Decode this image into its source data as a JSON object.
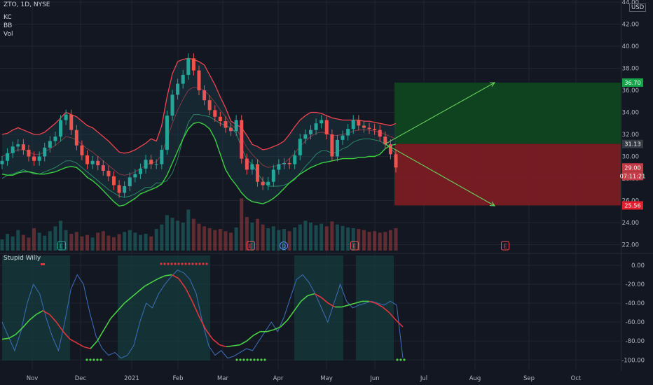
{
  "header": {
    "symbol": "ZTO, 1D, NYSE",
    "indicators": [
      "KC",
      "BB",
      "Vol"
    ],
    "currency": "USD"
  },
  "subpane": {
    "title": "Stupid Willy"
  },
  "colors": {
    "bg": "#131722",
    "grid": "#1f2430",
    "text": "#b2b5be",
    "up": "#26a69a",
    "down": "#ef5350",
    "band_upper": "#f0434e",
    "band_lower": "#3bd040",
    "channel_fill": "#1c3b48",
    "target_zone": "#0f4520",
    "stop_zone": "#7a1c24",
    "arrow": "#66d35e",
    "willy_line": "#3a6ab0",
    "ma_green": "#4ad144",
    "ma_red": "#e3343d",
    "zone_highlight": "#163c3c"
  },
  "chart_data": [
    {
      "type": "line",
      "title": "",
      "x_ticks": [
        "Nov",
        "Dec",
        "2021",
        "Feb",
        "Mar",
        "Apr",
        "May",
        "Jun",
        "Jul",
        "Aug",
        "Sep",
        "Oct"
      ],
      "y_ticks": [
        "22.00",
        "24.00",
        "26.00",
        "28.00",
        "30.00",
        "32.00",
        "34.00",
        "36.00",
        "38.00",
        "40.00",
        "42.00",
        "44.00"
      ],
      "ylim": [
        21.5,
        44.0
      ],
      "price_labels": [
        {
          "value": 36.7,
          "label": "36.70",
          "kind": "target"
        },
        {
          "value": 31.13,
          "label": "31.13",
          "kind": "entry"
        },
        {
          "value": 29.0,
          "label": "29.00",
          "kind": "last"
        },
        {
          "value": 28.8,
          "label": "07:11:21",
          "kind": "countdown"
        },
        {
          "value": 25.56,
          "label": "25.56",
          "kind": "stop"
        }
      ],
      "series": [
        {
          "name": "",
          "key": "close",
          "values": [
            29.6,
            30.3,
            30.9,
            31.1,
            30.6,
            30.0,
            29.6,
            30.0,
            30.8,
            31.4,
            31.8,
            33.3,
            33.8,
            32.4,
            31.0,
            30.1,
            29.3,
            29.6,
            29.2,
            28.7,
            28.2,
            27.4,
            26.7,
            27.3,
            28.1,
            28.4,
            28.9,
            29.7,
            29.3,
            29.3,
            30.6,
            33.7,
            35.6,
            36.6,
            37.4,
            38.9,
            37.8,
            36.0,
            35.1,
            34.2,
            33.6,
            33.2,
            32.6,
            32.3,
            33.3,
            29.8,
            28.8,
            29.3,
            27.7,
            27.4,
            27.7,
            28.8,
            29.3,
            29.4,
            29.3,
            30.1,
            31.6,
            32.0,
            32.4,
            33.0,
            33.3,
            32.0,
            30.0,
            31.5,
            31.9,
            32.5,
            33.3,
            32.8,
            32.6,
            32.5,
            32.4,
            31.8,
            31.1,
            30.2,
            29.0
          ]
        },
        {
          "name": "",
          "key": "bb_upper",
          "values": [
            32.0,
            32.1,
            32.4,
            32.6,
            32.4,
            32.2,
            32.0,
            32.0,
            32.2,
            32.6,
            33.0,
            33.5,
            34.0,
            33.8,
            33.6,
            33.2,
            32.8,
            32.6,
            32.2,
            31.8,
            31.4,
            30.9,
            30.4,
            30.3,
            30.4,
            30.6,
            30.9,
            31.2,
            31.6,
            31.4,
            32.8,
            35.4,
            37.5,
            38.6,
            38.8,
            38.9,
            38.8,
            38.6,
            38.3,
            37.4,
            36.5,
            35.4,
            34.4,
            33.2,
            32.9,
            32.6,
            31.9,
            31.1,
            30.9,
            30.6,
            30.7,
            30.9,
            31.1,
            31.4,
            32.0,
            32.7,
            33.3,
            33.7,
            34.0,
            34.0,
            33.9,
            33.7,
            33.5,
            33.4,
            33.3,
            33.3,
            33.3,
            33.3,
            33.2,
            33.2,
            33.1,
            33.0,
            32.9,
            32.8,
            33.0
          ]
        },
        {
          "name": "",
          "key": "bb_basis",
          "values": [
            30.0,
            30.2,
            30.4,
            30.6,
            30.6,
            30.4,
            30.2,
            30.2,
            30.4,
            30.7,
            31.0,
            31.4,
            31.8,
            31.7,
            31.5,
            31.1,
            30.7,
            30.4,
            30.0,
            29.6,
            29.2,
            28.8,
            28.4,
            28.3,
            28.4,
            28.6,
            28.9,
            29.2,
            29.4,
            29.5,
            30.2,
            31.6,
            33.0,
            34.2,
            35.2,
            36.0,
            36.3,
            36.2,
            36.0,
            35.5,
            34.9,
            34.2,
            33.6,
            32.9,
            32.5,
            31.7,
            30.8,
            30.2,
            29.7,
            29.2,
            29.0,
            29.1,
            29.2,
            29.4,
            29.8,
            30.3,
            30.9,
            31.4,
            31.8,
            32.1,
            32.2,
            32.1,
            31.9,
            31.9,
            32.0,
            32.1,
            32.3,
            32.4,
            32.4,
            32.4,
            32.3,
            32.2,
            32.0,
            31.8,
            31.6
          ]
        },
        {
          "name": "",
          "key": "kc_lower",
          "values": [
            28.4,
            28.3,
            28.3,
            28.5,
            28.6,
            28.6,
            28.5,
            28.4,
            28.4,
            28.5,
            28.6,
            28.8,
            29.0,
            29.1,
            29.0,
            28.6,
            28.1,
            27.8,
            27.4,
            26.9,
            26.4,
            25.9,
            25.5,
            25.6,
            25.9,
            26.2,
            26.6,
            26.8,
            27.0,
            27.2,
            27.5,
            28.3,
            29.4,
            30.5,
            31.6,
            32.5,
            33.0,
            33.1,
            32.9,
            32.5,
            31.6,
            30.2,
            28.8,
            28.0,
            27.4,
            26.7,
            26.2,
            25.9,
            25.8,
            25.7,
            25.9,
            26.2,
            26.6,
            27.1,
            27.6,
            28.0,
            28.4,
            28.7,
            29.0,
            29.2,
            29.4,
            29.5,
            29.6,
            29.7,
            29.8,
            29.8,
            29.8,
            29.9,
            29.9,
            30.0,
            30.0,
            30.2,
            30.7,
            31.0,
            31.1
          ]
        },
        {
          "name": "",
          "key": "bb_lower",
          "values": [
            28.0,
            28.3,
            28.4,
            28.6,
            28.8,
            28.6,
            28.4,
            28.4,
            28.6,
            28.8,
            29.0,
            29.3,
            29.6,
            29.6,
            29.4,
            29.0,
            28.6,
            28.2,
            27.8,
            27.4,
            27.0,
            26.7,
            26.4,
            26.3,
            26.4,
            26.6,
            26.9,
            27.2,
            27.2,
            27.6,
            27.6,
            27.8,
            28.5,
            29.8,
            31.6,
            33.1,
            33.8,
            33.8,
            33.7,
            33.6,
            33.3,
            33.0,
            32.8,
            32.6,
            32.1,
            30.8,
            29.7,
            29.3,
            28.5,
            27.8,
            27.3,
            27.3,
            27.3,
            27.4,
            27.6,
            27.9,
            28.5,
            29.1,
            29.6,
            30.2,
            30.5,
            30.5,
            30.3,
            30.4,
            30.7,
            30.9,
            31.3,
            31.5,
            31.6,
            31.6,
            31.5,
            31.4,
            31.1,
            30.8,
            30.2
          ]
        }
      ],
      "volume": [
        30,
        45,
        38,
        55,
        42,
        35,
        60,
        48,
        40,
        52,
        65,
        80,
        55,
        45,
        50,
        38,
        42,
        35,
        48,
        52,
        40,
        36,
        44,
        50,
        55,
        48,
        42,
        45,
        38,
        58,
        70,
        95,
        88,
        80,
        75,
        110,
        85,
        72,
        65,
        60,
        55,
        58,
        52,
        48,
        62,
        140,
        90,
        75,
        85,
        70,
        60,
        65,
        55,
        58,
        52,
        62,
        70,
        80,
        75,
        68,
        72,
        65,
        78,
        70,
        66,
        62,
        60,
        58,
        55,
        50,
        52,
        48,
        50,
        55,
        60
      ],
      "markers": [
        {
          "label": "E",
          "kind": "earnings"
        },
        {
          "label": "E",
          "kind": "earnings"
        },
        {
          "label": "D",
          "kind": "dividend"
        },
        {
          "label": "E",
          "kind": "earnings"
        },
        {
          "label": "E",
          "kind": "earnings"
        }
      ],
      "projection": {
        "entry": 31.13,
        "target": 36.7,
        "stop": 25.56
      }
    },
    {
      "type": "line",
      "title": "Stupid Willy",
      "y_ticks": [
        "0.00",
        "-20.00",
        "-40.00",
        "-60.00",
        "-80.00",
        "-100.00"
      ],
      "ylim": [
        -105,
        5
      ],
      "series": [
        {
          "name": "",
          "key": "willy",
          "values": [
            -60,
            -75,
            -90,
            -70,
            -40,
            -20,
            -30,
            -55,
            -75,
            -90,
            -60,
            -25,
            -10,
            -20,
            -50,
            -75,
            -88,
            -95,
            -92,
            -98,
            -95,
            -85,
            -60,
            -40,
            -45,
            -30,
            -20,
            -12,
            -5,
            -8,
            -15,
            -30,
            -60,
            -85,
            -95,
            -90,
            -98,
            -96,
            -92,
            -88,
            -90,
            -80,
            -70,
            -60,
            -70,
            -55,
            -35,
            -15,
            -10,
            -18,
            -30,
            -45,
            -60,
            -40,
            -20,
            -38,
            -45,
            -42,
            -40,
            -38,
            -40,
            -42,
            -38,
            -42,
            -98
          ]
        },
        {
          "name": "",
          "key": "ma",
          "values": [
            -78,
            -77,
            -73,
            -66,
            -58,
            -52,
            -48,
            -52,
            -60,
            -70,
            -78,
            -82,
            -86,
            -88,
            -80,
            -68,
            -56,
            -48,
            -40,
            -34,
            -28,
            -22,
            -18,
            -14,
            -11,
            -10,
            -14,
            -24,
            -38,
            -54,
            -68,
            -78,
            -84,
            -86,
            -85,
            -84,
            -80,
            -74,
            -70,
            -70,
            -68,
            -65,
            -58,
            -48,
            -38,
            -32,
            -30,
            -34,
            -40,
            -44,
            -44,
            -42,
            -40,
            -38,
            -38,
            -40,
            -44,
            -50,
            -58,
            -65
          ]
        }
      ]
    }
  ]
}
